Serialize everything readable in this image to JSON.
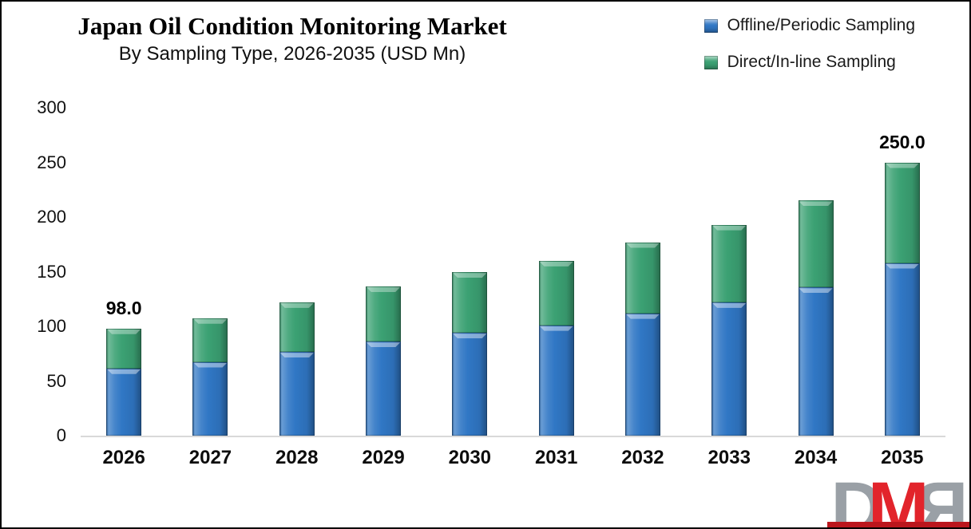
{
  "header": {
    "title": "Japan Oil Condition Monitoring Market",
    "subtitle": "By Sampling Type, 2026-2035 (USD Mn)"
  },
  "legend": {
    "items": [
      {
        "label": "Offline/Periodic Sampling",
        "color": "#3077C5"
      },
      {
        "label": "Direct/In-line Sampling",
        "color": "#3BA173"
      }
    ]
  },
  "chart_data": {
    "type": "bar",
    "stacked": true,
    "title": "Japan Oil Condition Monitoring Market",
    "subtitle": "By Sampling Type, 2026-2035 (USD Mn)",
    "categories": [
      "2026",
      "2027",
      "2028",
      "2029",
      "2030",
      "2031",
      "2032",
      "2033",
      "2034",
      "2035"
    ],
    "series": [
      {
        "name": "Offline/Periodic Sampling",
        "color": "#3077C5",
        "values": [
          61.5,
          67.5,
          76.5,
          86.0,
          94.0,
          101.0,
          112.0,
          122.0,
          135.5,
          158.0
        ]
      },
      {
        "name": "Direct/In-line Sampling",
        "color": "#3BA173",
        "values": [
          36.5,
          40.0,
          45.5,
          50.5,
          55.5,
          59.0,
          65.0,
          71.0,
          79.5,
          92.0
        ]
      }
    ],
    "totals": [
      98.0,
      107.5,
      122.0,
      136.5,
      149.5,
      160.0,
      177.0,
      193.0,
      215.0,
      250.0
    ],
    "point_labels": [
      "98.0",
      "",
      "",
      "",
      "",
      "",
      "",
      "",
      "",
      "250.0"
    ],
    "xlabel": "",
    "ylabel": "",
    "ylim": [
      0,
      300
    ],
    "yticks": [
      0,
      50,
      100,
      150,
      200,
      250,
      300
    ],
    "grid": false,
    "legend_position": "top-right",
    "axis_line_color": "#d9d9d9"
  },
  "logo": {
    "letters": [
      "D",
      "M",
      "R"
    ],
    "gray": "#9aa0a6",
    "red": "#e2242b"
  }
}
